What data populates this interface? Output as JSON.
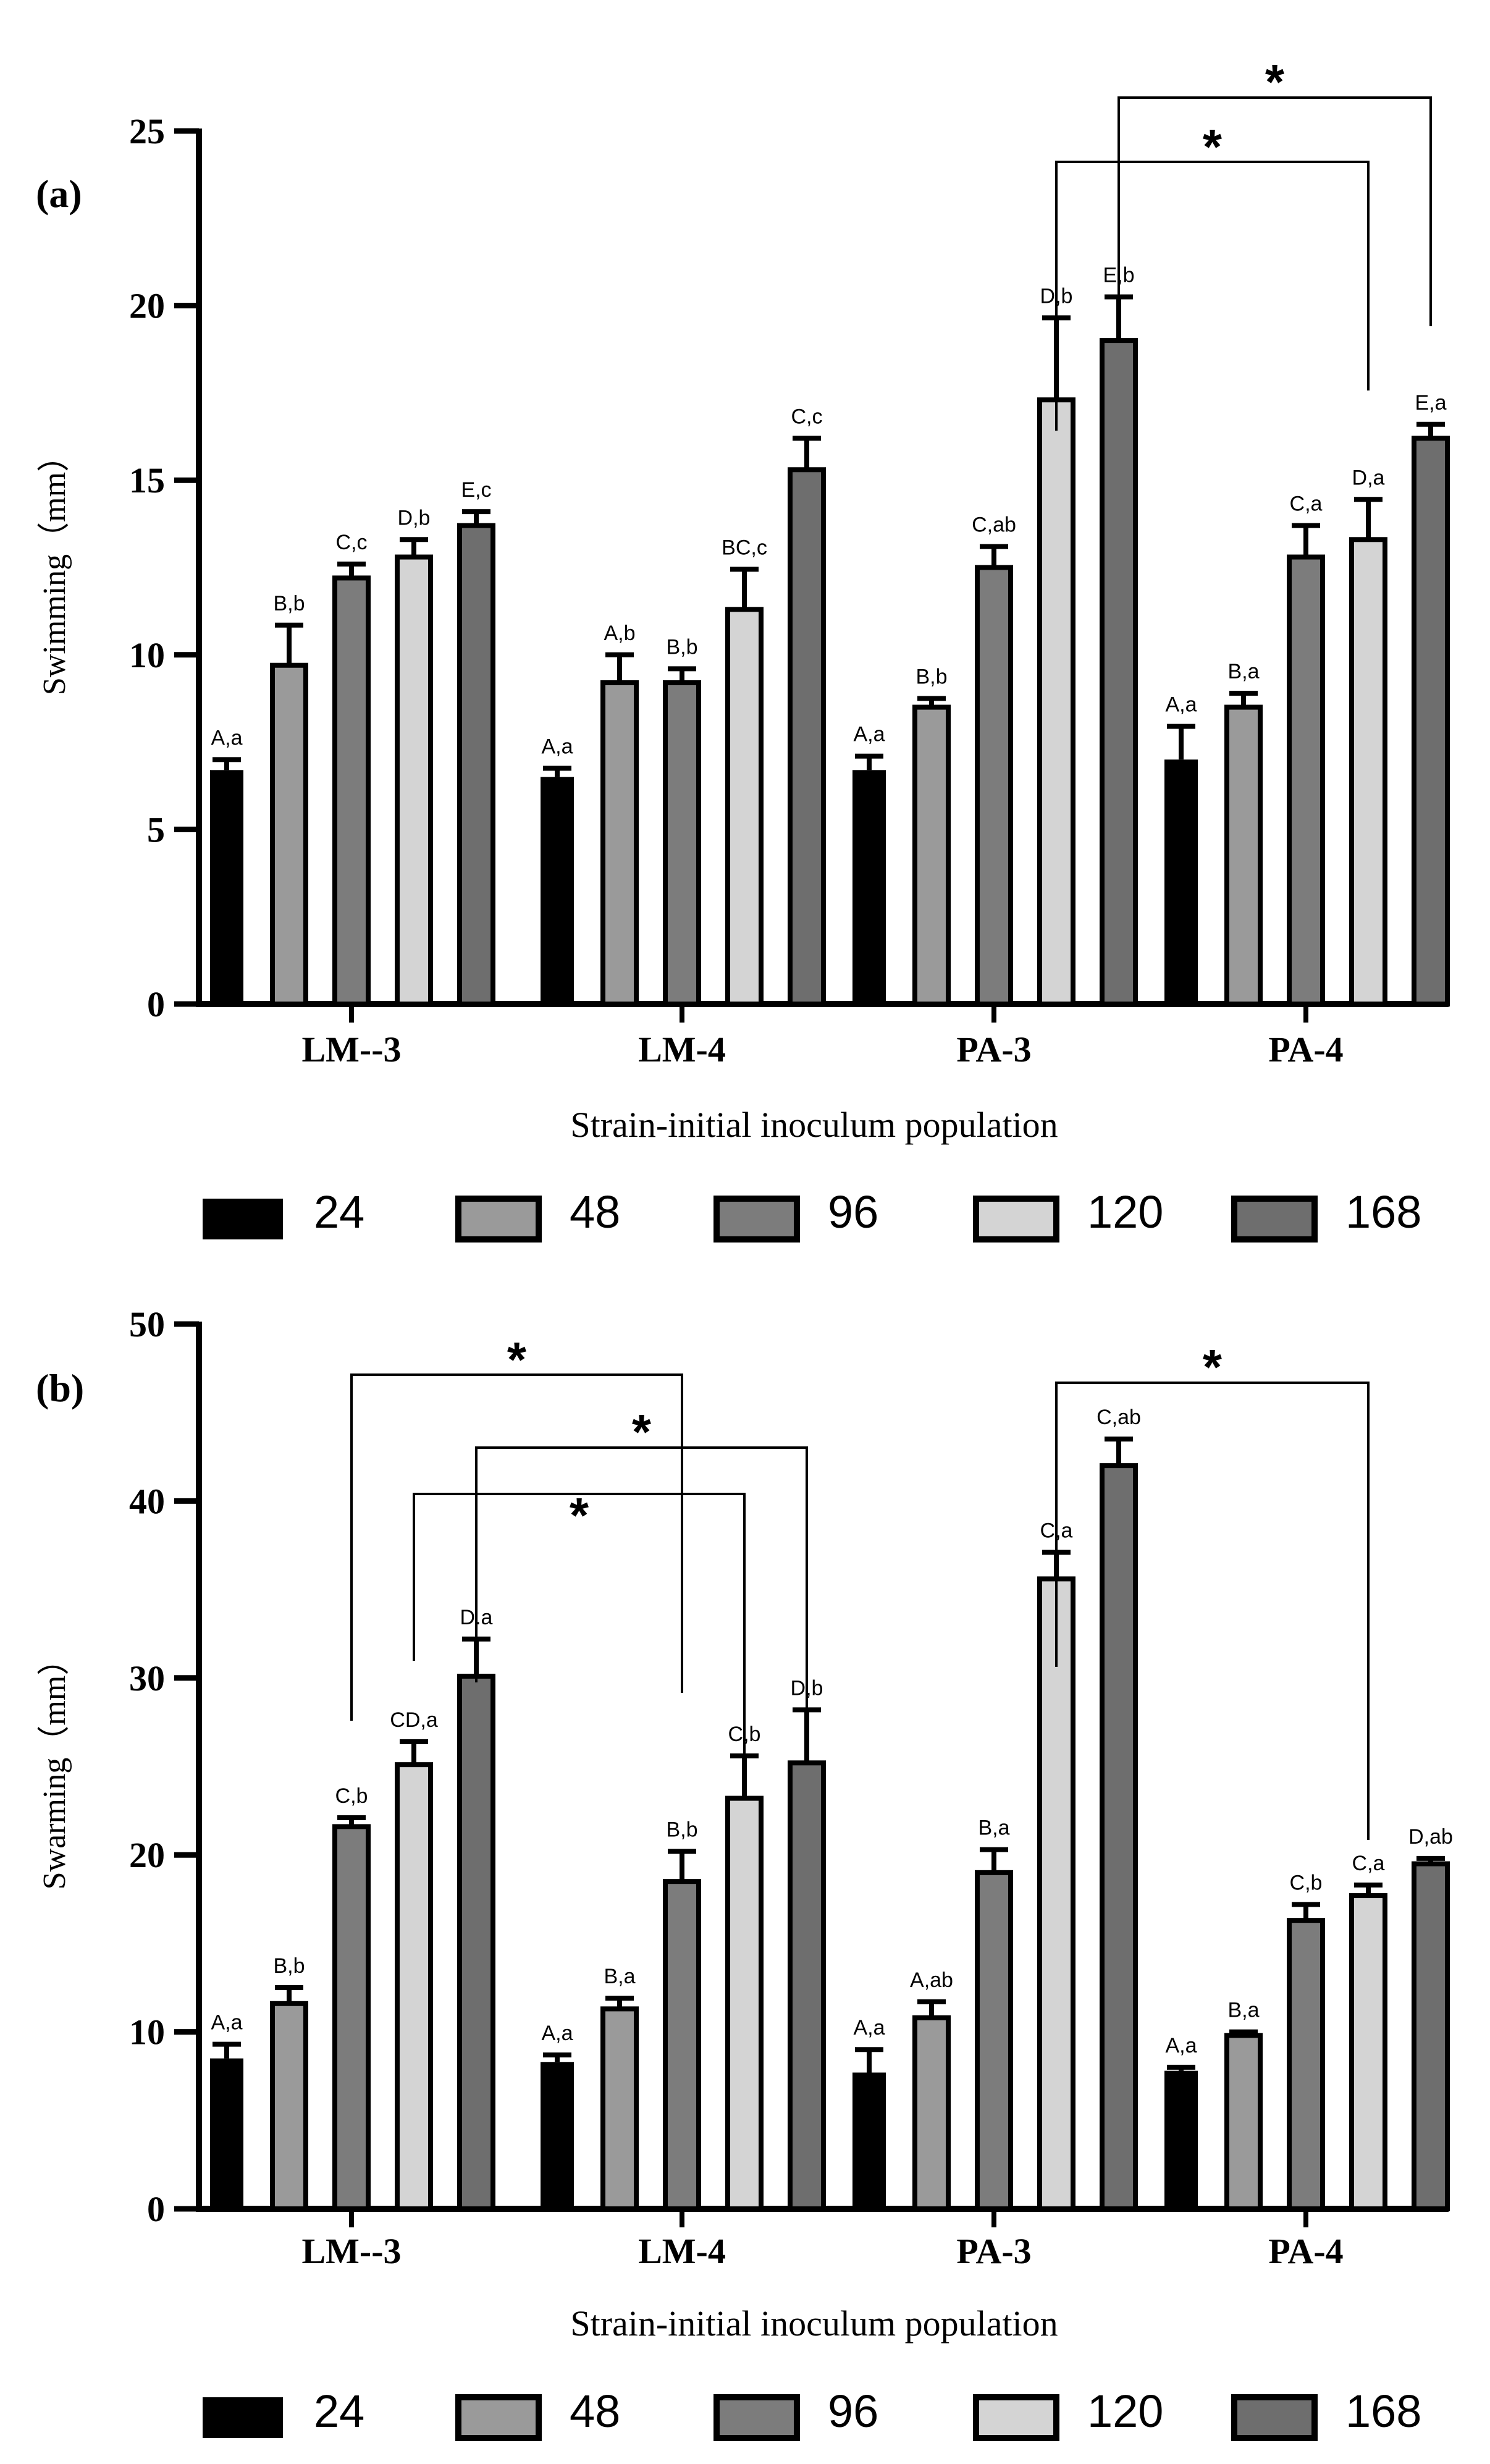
{
  "chart_data": [
    {
      "panel": "(a)",
      "type": "bar",
      "ylabel": "Swimming（mm）",
      "xlabel": "Strain-initial inoculum population",
      "ylim": [
        0,
        25
      ],
      "yticks": [
        "0",
        "5",
        "10",
        "15",
        "20",
        "25"
      ],
      "categories": [
        "LM--3",
        "LM-4",
        "PA-3",
        "PA-4"
      ],
      "series": [
        {
          "name": "24",
          "color": "#000000",
          "values": [
            6.7,
            6.5,
            6.7,
            7.0
          ],
          "errors": [
            0.3,
            0.25,
            0.4,
            0.95
          ],
          "labels": [
            "A,a",
            "A,a",
            "A,a",
            "A,a"
          ]
        },
        {
          "name": "48",
          "color": "#9a9a9a",
          "values": [
            9.7,
            9.2,
            8.5,
            8.5
          ],
          "errors": [
            1.15,
            0.8,
            0.25,
            0.4
          ],
          "labels": [
            "B,b",
            "A,b",
            "B,b",
            "B,a"
          ]
        },
        {
          "name": "96",
          "color": "#7c7c7c",
          "values": [
            12.2,
            9.2,
            12.5,
            12.8
          ],
          "errors": [
            0.4,
            0.4,
            0.6,
            0.9
          ],
          "labels": [
            "C,c",
            "B,b",
            "C,ab",
            "C,a"
          ]
        },
        {
          "name": "120",
          "color": "#d4d4d4",
          "values": [
            12.8,
            11.3,
            17.3,
            13.3
          ],
          "errors": [
            0.5,
            1.15,
            2.35,
            1.15
          ],
          "labels": [
            "D,b",
            "BC,c",
            "D,b",
            "D,a"
          ]
        },
        {
          "name": "168",
          "color": "#6e6e6e",
          "values": [
            13.7,
            15.3,
            19.0,
            16.2
          ],
          "errors": [
            0.4,
            0.9,
            1.25,
            0.4
          ],
          "labels": [
            "E,c",
            "C,c",
            "E,b",
            "E,a"
          ]
        }
      ],
      "significance": [
        {
          "label": "*",
          "from": "PA-3 / 168",
          "to": "PA-4 / 168"
        },
        {
          "label": "*",
          "from": "PA-3 / 120",
          "to": "PA-4 / 120"
        }
      ]
    },
    {
      "panel": "(b)",
      "type": "bar",
      "ylabel": "Swarming（mm）",
      "xlabel": "Strain-initial inoculum population",
      "ylim": [
        0,
        50
      ],
      "yticks": [
        "0",
        "10",
        "20",
        "30",
        "40",
        "50"
      ],
      "categories": [
        "LM--3",
        "LM-4",
        "PA-3",
        "PA-4"
      ],
      "series": [
        {
          "name": "24",
          "color": "#000000",
          "values": [
            8.5,
            8.3,
            7.7,
            7.8
          ],
          "errors": [
            0.8,
            0.4,
            1.3,
            0.2
          ],
          "labels": [
            "A,a",
            "A,a",
            "A,a",
            "A,a"
          ]
        },
        {
          "name": "48",
          "color": "#9a9a9a",
          "values": [
            11.6,
            11.3,
            10.8,
            9.8
          ],
          "errors": [
            0.9,
            0.6,
            0.9,
            0.2
          ],
          "labels": [
            "B,b",
            "B,a",
            "A,ab",
            "B,a"
          ]
        },
        {
          "name": "96",
          "color": "#7c7c7c",
          "values": [
            21.6,
            18.5,
            19.0,
            16.3
          ],
          "errors": [
            0.5,
            1.7,
            1.3,
            0.9
          ],
          "labels": [
            "C,b",
            "B,b",
            "B,a",
            "C,b"
          ]
        },
        {
          "name": "120",
          "color": "#d4d4d4",
          "values": [
            25.1,
            23.2,
            35.6,
            17.7
          ],
          "errors": [
            1.3,
            2.4,
            1.5,
            0.6
          ],
          "labels": [
            "CD,a",
            "C,b",
            "C,a",
            "C,a"
          ]
        },
        {
          "name": "168",
          "color": "#6e6e6e",
          "values": [
            30.1,
            25.2,
            42.0,
            19.5
          ],
          "errors": [
            2.1,
            3.0,
            1.5,
            0.3
          ],
          "labels": [
            "D.a",
            "D,b",
            "C,ab",
            "D,ab"
          ]
        }
      ],
      "significance": [
        {
          "label": "*",
          "from": "LM--3 / 96",
          "to": "LM-4 / 96"
        },
        {
          "label": "*",
          "from": "LM--3 / 168",
          "to": "LM-4 / 168"
        },
        {
          "label": "*",
          "from": "LM--3 / 120",
          "to": "LM-4 / 120"
        },
        {
          "label": "*",
          "from": "PA-3 / 120",
          "to": "PA-4 / 120"
        }
      ]
    }
  ]
}
